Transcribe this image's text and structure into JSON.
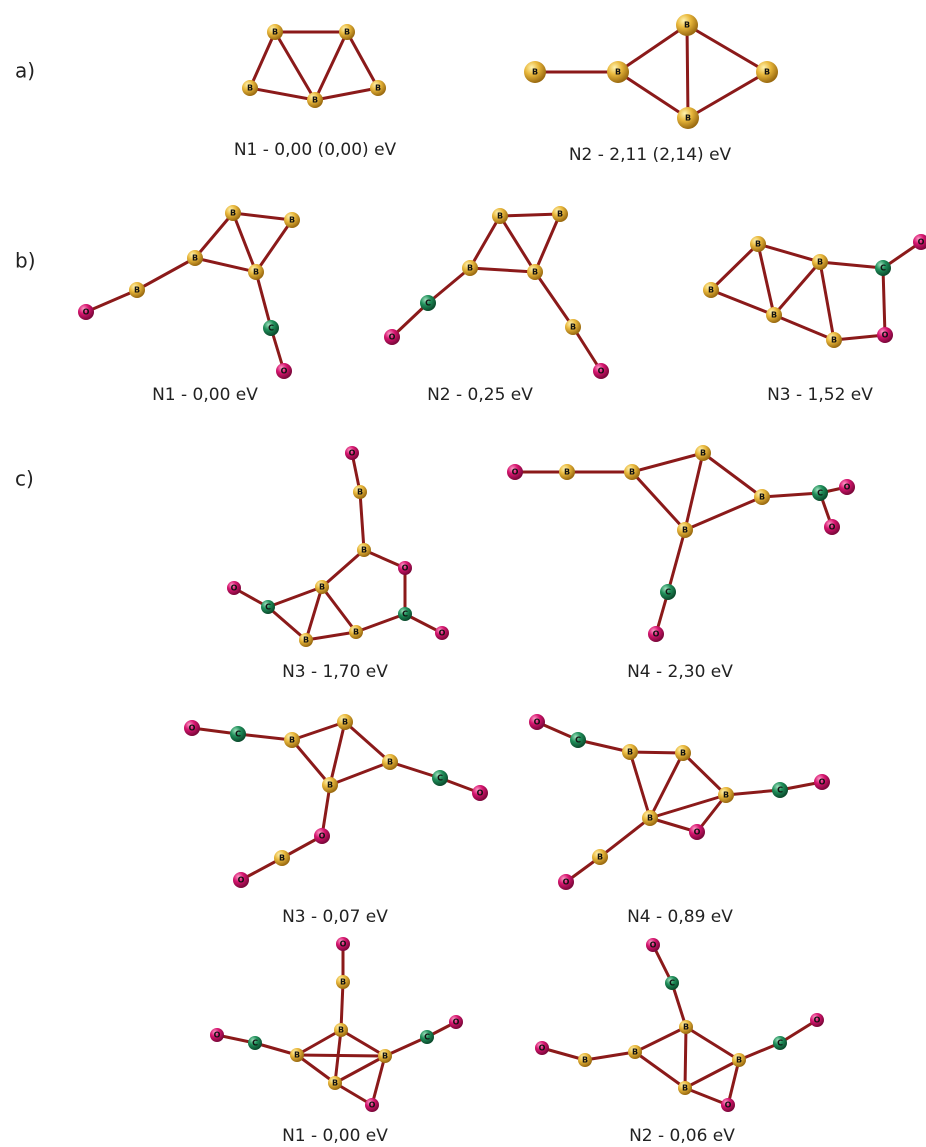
{
  "panels": [
    {
      "label": "a)",
      "structures": [
        {
          "caption": "N1 - 0,00 (0,00) eV",
          "atoms": [
            "B",
            "B",
            "B",
            "B",
            "B"
          ]
        },
        {
          "caption": "N2 - 2,11 (2,14) eV",
          "atoms": [
            "B",
            "B",
            "B",
            "B",
            "B"
          ]
        }
      ]
    },
    {
      "label": "b)",
      "structures": [
        {
          "caption": "N1 - 0,00 eV",
          "atoms": [
            "B",
            "B",
            "B",
            "B",
            "B",
            "O",
            "C",
            "O"
          ]
        },
        {
          "caption": "N2 - 0,25 eV",
          "atoms": [
            "B",
            "B",
            "B",
            "B",
            "C",
            "O",
            "B",
            "O"
          ]
        },
        {
          "caption": "N3 - 1,52 eV",
          "atoms": [
            "B",
            "B",
            "B",
            "B",
            "C",
            "O",
            "B",
            "O"
          ]
        }
      ]
    },
    {
      "label": "c)",
      "structures": [
        {
          "caption": "N3 - 1,70 eV",
          "atoms": [
            "O",
            "B",
            "B",
            "O",
            "B",
            "C",
            "O",
            "B",
            "B",
            "C",
            "O"
          ]
        },
        {
          "caption": "N4 - 2,30 eV",
          "atoms": [
            "O",
            "B",
            "B",
            "B",
            "B",
            "B",
            "C",
            "O",
            "O",
            "C",
            "O"
          ]
        },
        {
          "caption": "N3 - 0,07 eV",
          "atoms": [
            "O",
            "C",
            "B",
            "B",
            "B",
            "B",
            "C",
            "O",
            "O",
            "B",
            "O"
          ]
        },
        {
          "caption": "N4 - 0,89 eV",
          "atoms": [
            "O",
            "C",
            "B",
            "B",
            "B",
            "B",
            "O",
            "C",
            "O",
            "B",
            "O"
          ]
        },
        {
          "caption": "N1 - 0,00 eV",
          "atoms": [
            "O",
            "B",
            "B",
            "B",
            "C",
            "O",
            "B",
            "C",
            "O",
            "B",
            "O"
          ]
        },
        {
          "caption": "N2 - 0,06 eV",
          "atoms": [
            "O",
            "C",
            "B",
            "B",
            "C",
            "O",
            "B",
            "O",
            "B",
            "B",
            "O"
          ]
        }
      ]
    }
  ]
}
